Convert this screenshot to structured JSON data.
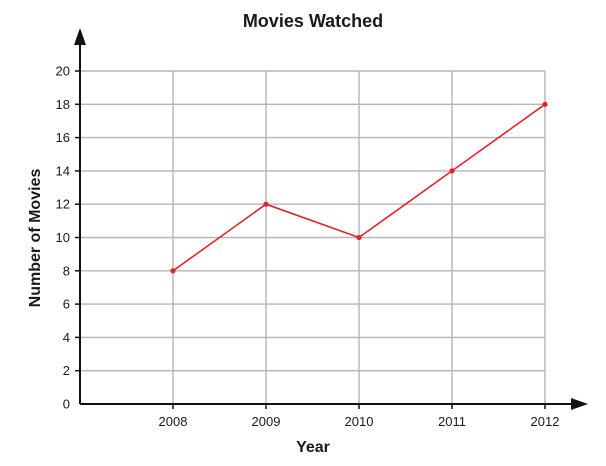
{
  "chart_data": {
    "type": "line",
    "title": "Movies Watched",
    "xlabel": "Year",
    "ylabel": "Number of Movies",
    "categories": [
      "2008",
      "2009",
      "2010",
      "2011",
      "2012"
    ],
    "series": [
      {
        "values": [
          8,
          12,
          10,
          14,
          18
        ]
      }
    ],
    "ylim": [
      0,
      20
    ],
    "yticks": [
      0,
      2,
      4,
      6,
      8,
      10,
      12,
      14,
      16,
      18,
      20
    ],
    "grid": true,
    "colors": {
      "line": "#e0242b",
      "grid": "#b5b5b5",
      "axis": "#111111"
    }
  }
}
